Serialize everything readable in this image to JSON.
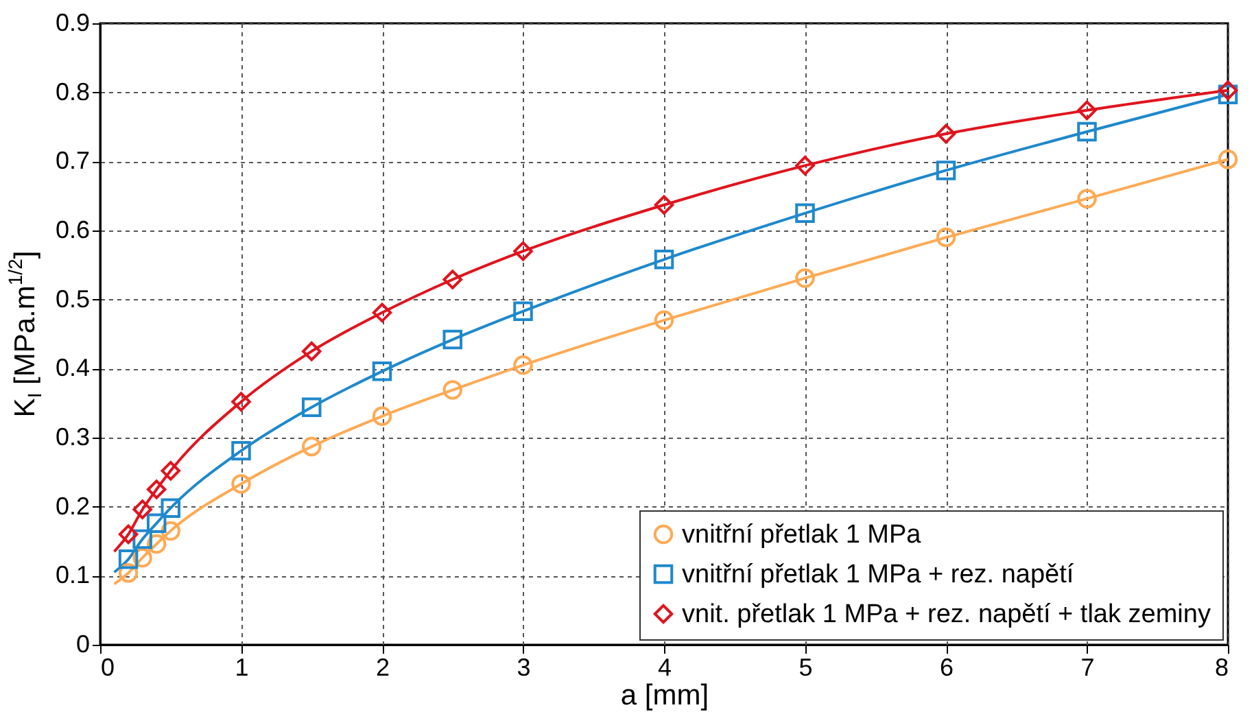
{
  "chart_data": {
    "type": "scatter",
    "xlabel": "a [mm]",
    "ylabel": "K$_{I}$ [MPa.m$^{1/2}$]",
    "xlim": [
      0,
      8
    ],
    "xticks": [
      0,
      1,
      2,
      3,
      4,
      5,
      6,
      7,
      8
    ],
    "ylim": [
      0,
      0.9
    ],
    "yticks": [
      0,
      0.1,
      0.2,
      0.3,
      0.4,
      0.5,
      0.6,
      0.7,
      0.8,
      0.9
    ],
    "grid": true,
    "legend": "bottom right",
    "series": [
      {
        "type": "line",
        "marker": "none",
        "color": "#fdaa55",
        "x": [
          0.1,
          0.2,
          0.3,
          0.4,
          0.5,
          1,
          1.5,
          2,
          2.5,
          3,
          4,
          5,
          6,
          7,
          8
        ],
        "values": [
          0.088,
          0.104,
          0.126,
          0.146,
          0.165,
          0.233,
          0.287,
          0.331,
          0.369,
          0.405,
          0.47,
          0.531,
          0.59,
          0.646,
          0.703
        ]
      },
      {
        "type": "line",
        "marker": "none",
        "color": "#1f88cc",
        "x": [
          0.1,
          0.2,
          0.3,
          0.4,
          0.5,
          1,
          1.5,
          2,
          2.5,
          3,
          4,
          5,
          6,
          7,
          8
        ],
        "values": [
          0.105,
          0.124,
          0.153,
          0.176,
          0.198,
          0.281,
          0.344,
          0.396,
          0.442,
          0.483,
          0.558,
          0.625,
          0.687,
          0.743,
          0.797
        ]
      },
      {
        "type": "line",
        "marker": "none",
        "color": "#e0141e",
        "x": [
          0.1,
          0.2,
          0.3,
          0.4,
          0.5,
          1,
          1.5,
          2,
          2.5,
          3,
          4,
          5,
          6,
          7,
          8
        ],
        "values": [
          0.135,
          0.16,
          0.196,
          0.225,
          0.252,
          0.352,
          0.425,
          0.481,
          0.529,
          0.57,
          0.637,
          0.694,
          0.74,
          0.774,
          0.803
        ]
      },
      {
        "type": "scatter",
        "marker": "circle",
        "name": "vnitřní přetlak 1 MPa",
        "color": "#fdaa55",
        "x": [
          0.2,
          0.3,
          0.4,
          0.5,
          1,
          1.5,
          2,
          2.5,
          3,
          4,
          5,
          6,
          7,
          8
        ],
        "values": [
          0.104,
          0.126,
          0.146,
          0.165,
          0.233,
          0.287,
          0.331,
          0.369,
          0.405,
          0.47,
          0.531,
          0.59,
          0.646,
          0.703
        ]
      },
      {
        "type": "scatter",
        "marker": "square",
        "name": "vnitřní přetlak 1 MPa + rez. napětí",
        "color": "#1f88cc",
        "x": [
          0.2,
          0.3,
          0.4,
          0.5,
          1,
          1.5,
          2,
          2.5,
          3,
          4,
          5,
          6,
          7,
          8
        ],
        "values": [
          0.124,
          0.153,
          0.176,
          0.198,
          0.281,
          0.344,
          0.396,
          0.442,
          0.483,
          0.558,
          0.625,
          0.687,
          0.743,
          0.797
        ]
      },
      {
        "type": "scatter",
        "marker": "diamond",
        "name": "vnit. přetlak 1 MPa + rez. napětí + tlak zeminy",
        "color": "#e0141e",
        "x": [
          0.2,
          0.3,
          0.4,
          0.5,
          1,
          1.5,
          2,
          2.5,
          3,
          4,
          5,
          6,
          7,
          8
        ],
        "values": [
          0.16,
          0.196,
          0.225,
          0.252,
          0.352,
          0.425,
          0.481,
          0.529,
          0.57,
          0.637,
          0.694,
          0.74,
          0.774,
          0.803
        ]
      }
    ]
  }
}
